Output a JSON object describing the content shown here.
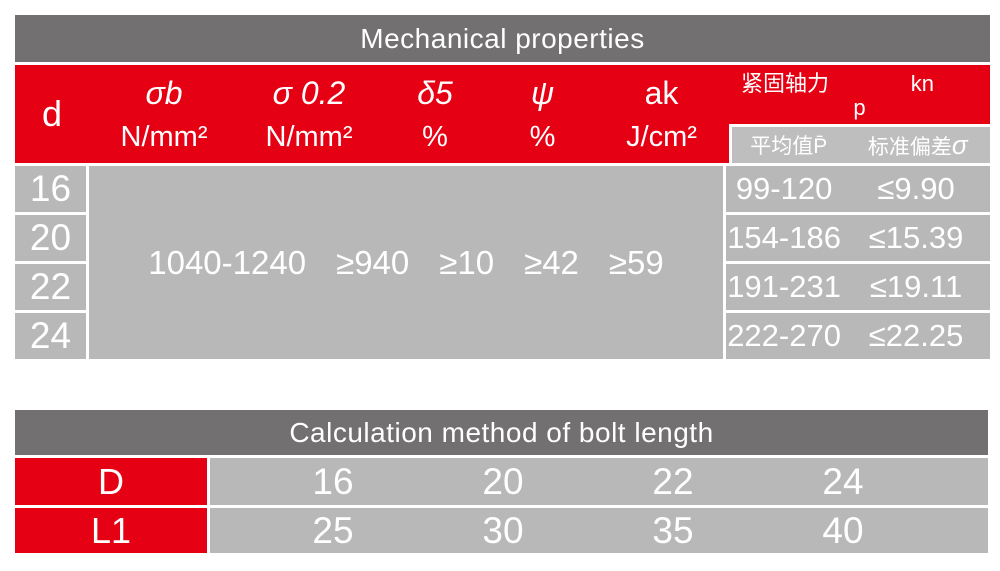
{
  "colors": {
    "header_dark": "#727070",
    "accent_red": "#e60013",
    "cell_gray": "#b9b8b8",
    "subheader_gray": "#bfbebe",
    "text": "#ffffff"
  },
  "mech_table": {
    "title": "Mechanical properties",
    "d_label": "d",
    "columns": [
      {
        "symbol": "σb",
        "unit": "N/mm²"
      },
      {
        "symbol": "σ 0.2",
        "unit": "N/mm²"
      },
      {
        "symbol": "δ5",
        "unit": "%"
      },
      {
        "symbol": "ψ",
        "unit": "%"
      },
      {
        "symbol": "ak",
        "unit": "J/cm²"
      }
    ],
    "axial": {
      "label": "紧固轴力",
      "p": "p",
      "unit": "kn",
      "mean_label": "平均值P̄",
      "std_label": "标准偏差",
      "std_symbol": "σ"
    },
    "d_values": [
      "16",
      "20",
      "22",
      "24"
    ],
    "shared_values": [
      "1040-1240",
      "≥940",
      "≥10",
      "≥42",
      "≥59"
    ],
    "axial_rows": [
      {
        "mean": "99-120",
        "std": "≤9.90"
      },
      {
        "mean": "154-186",
        "std": "≤15.39"
      },
      {
        "mean": "191-231",
        "std": "≤19.11"
      },
      {
        "mean": "222-270",
        "std": "≤22.25"
      }
    ]
  },
  "length_table": {
    "title": "Calculation method of bolt length",
    "rows": [
      {
        "label": "D",
        "values": [
          "16",
          "20",
          "22",
          "24"
        ]
      },
      {
        "label": "L1",
        "values": [
          "25",
          "30",
          "35",
          "40"
        ]
      }
    ]
  }
}
